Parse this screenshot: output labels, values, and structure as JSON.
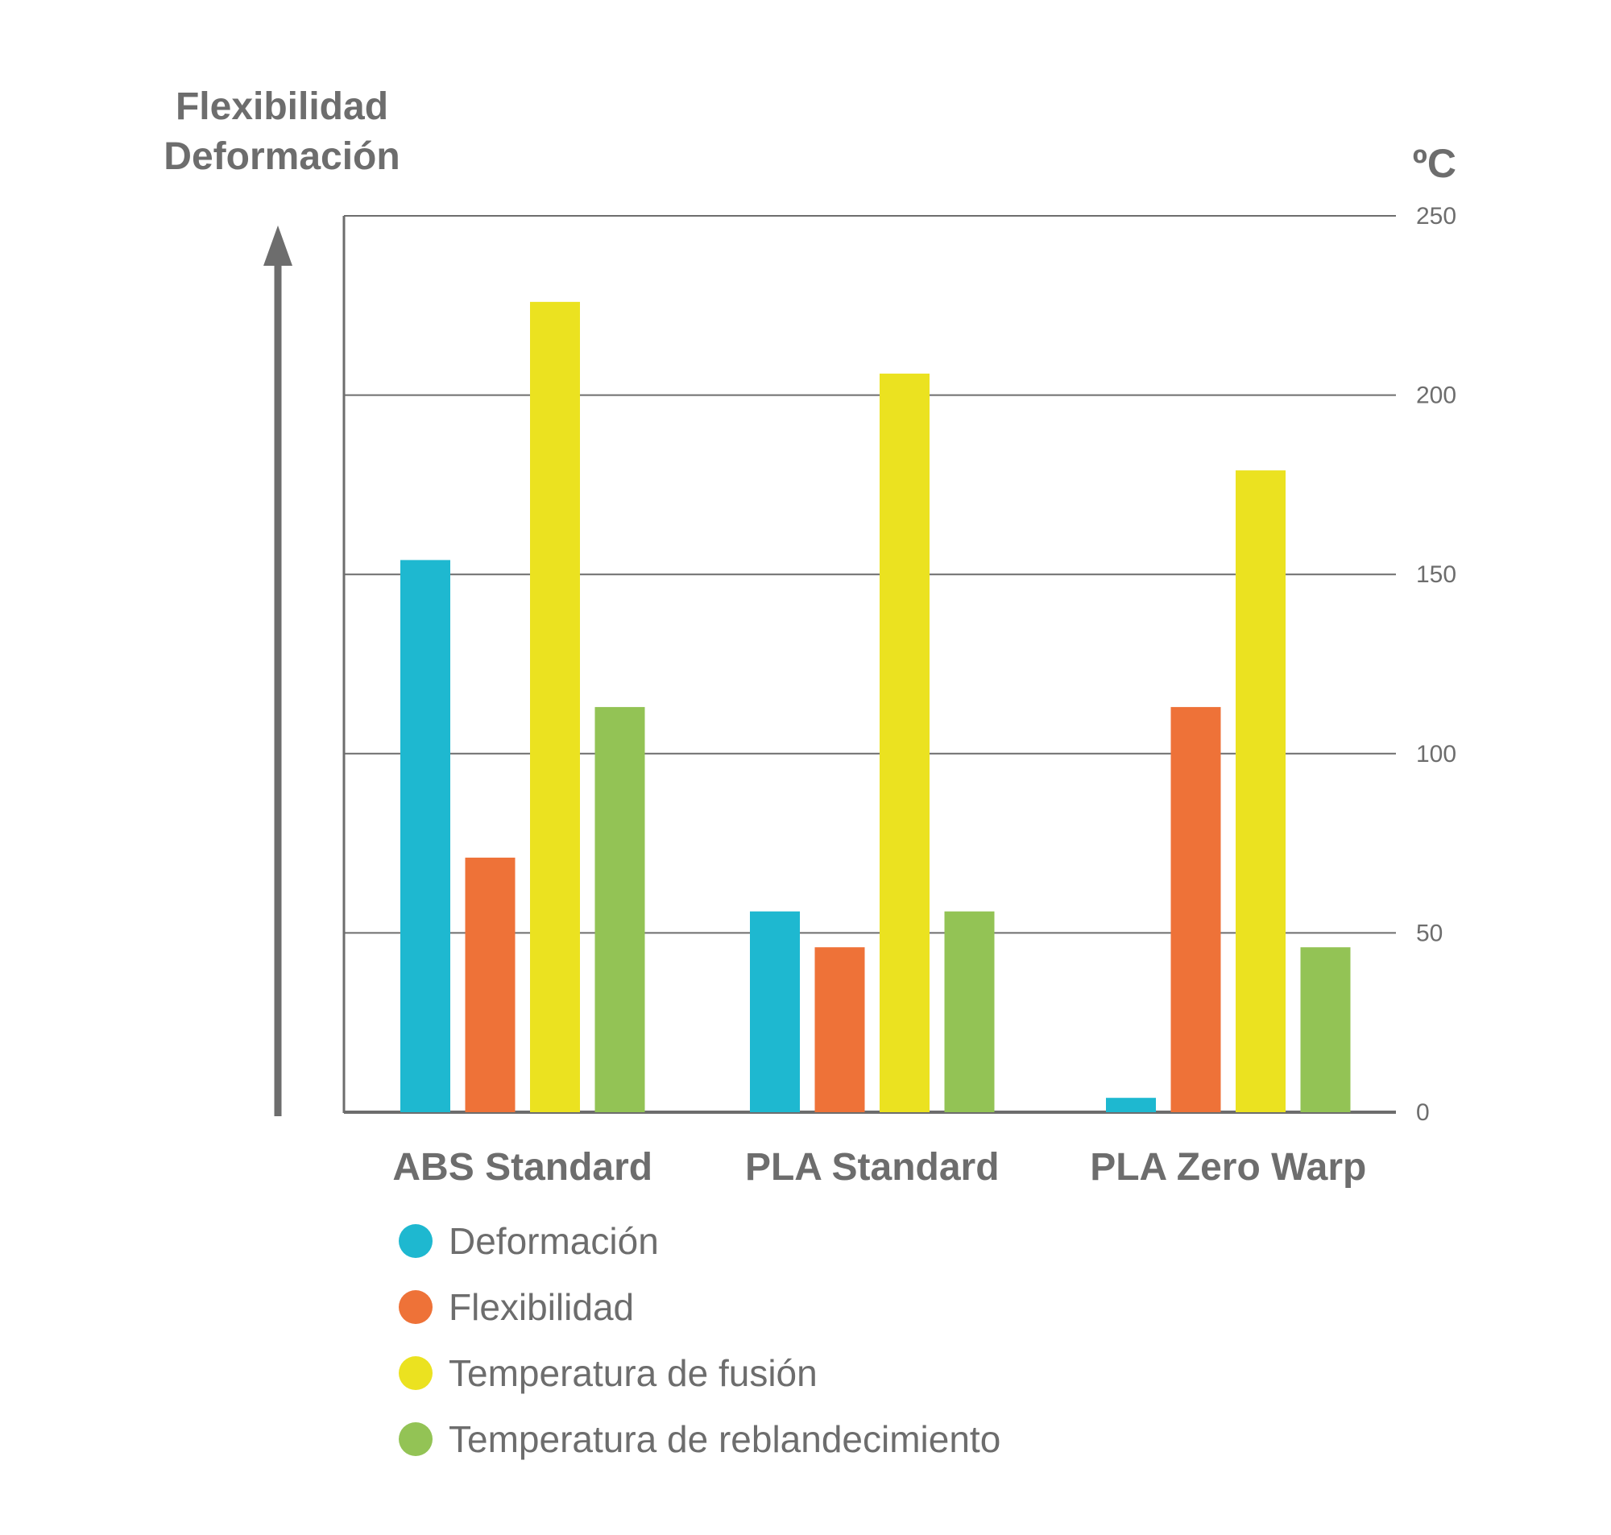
{
  "chart_data": {
    "type": "bar",
    "left_axis_label": [
      "Flexibilidad",
      "Deformación"
    ],
    "right_axis_unit": "ºC",
    "ylim": [
      0,
      250
    ],
    "yticks": [
      0,
      50,
      100,
      150,
      200,
      250
    ],
    "grid": true,
    "legend_position": "bottom-left",
    "categories": [
      "ABS Standard",
      "PLA Standard",
      "PLA Zero Warp"
    ],
    "series": [
      {
        "name": "Deformación",
        "color": "#1eb8d0",
        "values": [
          154,
          56,
          4
        ]
      },
      {
        "name": "Flexibilidad",
        "color": "#ee7238",
        "values": [
          71,
          46,
          113
        ]
      },
      {
        "name": "Temperatura de fusión",
        "color": "#ebe220",
        "values": [
          226,
          206,
          179
        ]
      },
      {
        "name": "Temperatura de reblandecimiento",
        "color": "#93c355",
        "values": [
          113,
          56,
          46
        ]
      }
    ]
  }
}
